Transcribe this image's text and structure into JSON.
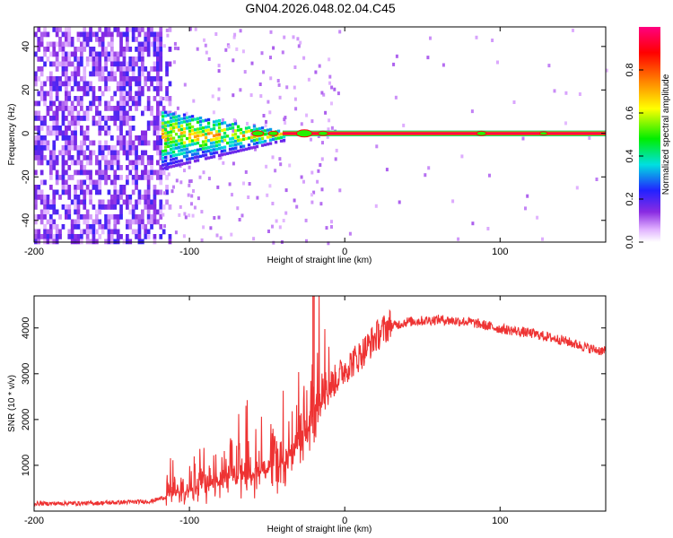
{
  "title": "GN04.2026.048.02.04.C45",
  "chart_data": [
    {
      "type": "heatmap",
      "xlabel": "Height of straight line (km)",
      "ylabel": "Frequency (Hz)",
      "xlim": [
        -200,
        168
      ],
      "ylim": [
        -50,
        49
      ],
      "xticks": [
        -200,
        -100,
        0,
        100
      ],
      "yticks": [
        -40,
        -20,
        0,
        20,
        40
      ],
      "description_series": [
        {
          "name": "noise region",
          "x_range": [
            -200,
            -118
          ],
          "amplitude": 0.15
        },
        {
          "name": "transition region",
          "x_range": [
            -118,
            -40
          ],
          "amplitude_center": 0.45
        },
        {
          "name": "carrier line",
          "x_range": [
            -40,
            168
          ],
          "frequency": 0,
          "amplitude": 0.95
        }
      ],
      "colorbar": {
        "label": "Normalized spectral amplitude",
        "range": [
          0,
          1
        ],
        "ticks": [
          "0.0",
          "0.2",
          "0.4",
          "0.6",
          "0.8"
        ]
      }
    },
    {
      "type": "line",
      "xlabel": "Height of straight line (km)",
      "ylabel": "SNR (10 * v/v)",
      "xlim": [
        -200,
        168
      ],
      "ylim": [
        0,
        4700
      ],
      "xticks": [
        -200,
        -100,
        0,
        100
      ],
      "yticks": [
        1000,
        2000,
        3000,
        4000
      ],
      "color": "#ee3333",
      "series": [
        {
          "name": "SNR",
          "x": [
            -200,
            -160,
            -125,
            -115,
            -100,
            -80,
            -60,
            -40,
            -30,
            -20,
            -10,
            0,
            10,
            20,
            30,
            40,
            60,
            80,
            100,
            120,
            140,
            160,
            168
          ],
          "y": [
            150,
            160,
            200,
            300,
            450,
            600,
            800,
            1000,
            1400,
            1900,
            2600,
            3000,
            3300,
            3700,
            4000,
            4100,
            4150,
            4100,
            3950,
            3850,
            3700,
            3500,
            3450
          ]
        }
      ],
      "annotations": [
        {
          "label": "spike",
          "x": -20.5,
          "y": 4700
        }
      ]
    }
  ]
}
